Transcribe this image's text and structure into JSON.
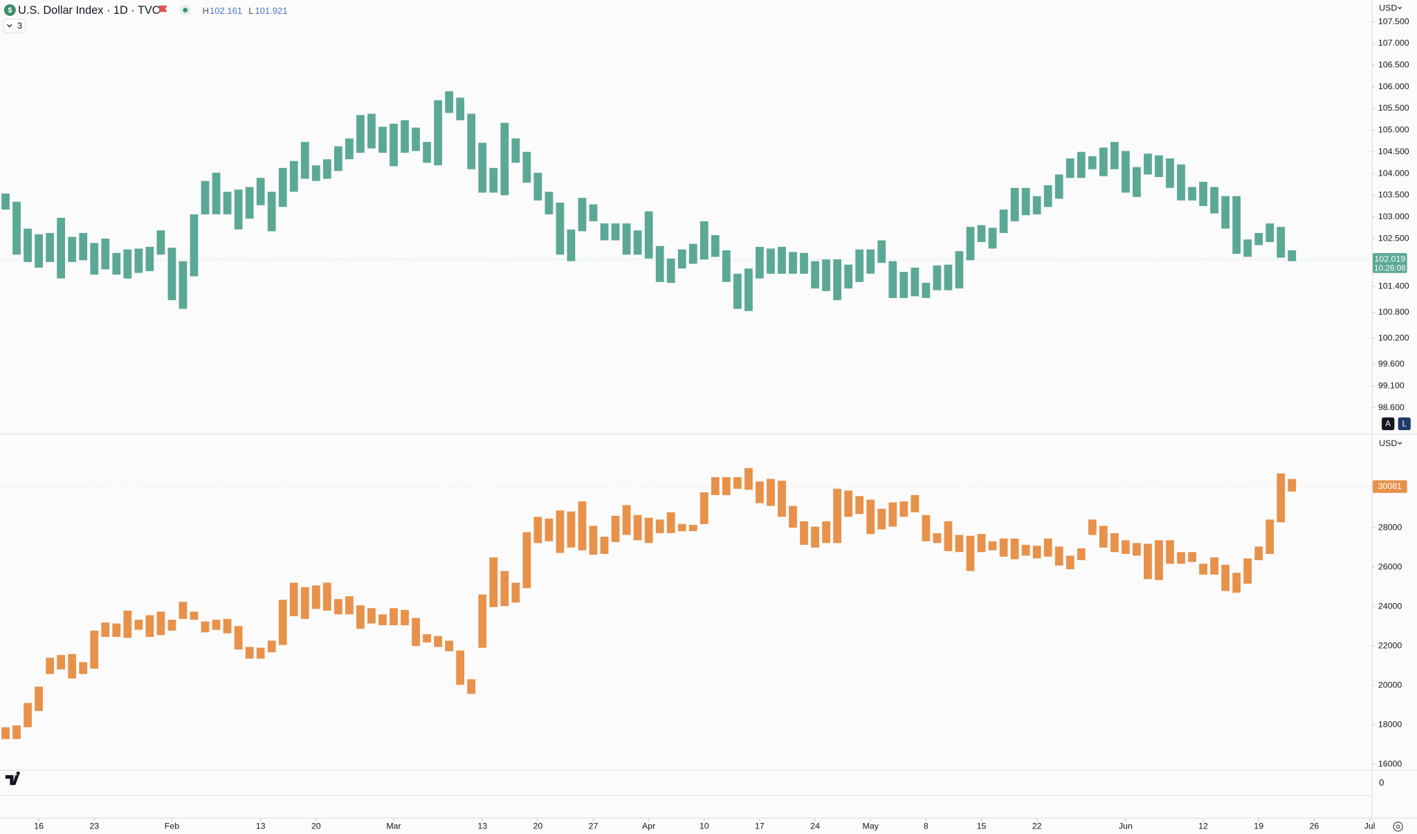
{
  "header": {
    "symbol": "U.S. Dollar Index · 1D · TVC",
    "high_label": "H",
    "high": 102.161,
    "low_label": "L",
    "low": 101.921,
    "indicators": 3
  },
  "chart_data": [
    {
      "type": "range-bar",
      "currency": "USD",
      "color": "#5ba896",
      "low": [
        103.17,
        102.13,
        101.96,
        101.83,
        101.96,
        101.58,
        101.96,
        102.0,
        101.67,
        101.79,
        101.67,
        101.58,
        101.71,
        101.75,
        102.13,
        101.08,
        100.88,
        101.63,
        103.06,
        103.06,
        103.06,
        102.71,
        102.96,
        103.27,
        102.67,
        103.23,
        103.58,
        103.88,
        103.83,
        103.88,
        104.06,
        104.33,
        104.48,
        104.58,
        104.48,
        104.17,
        104.48,
        104.52,
        104.25,
        104.19,
        105.4,
        105.23,
        104.1,
        103.56,
        103.56,
        103.5,
        104.25,
        103.79,
        103.38,
        103.06,
        102.13,
        101.98,
        102.67,
        102.9,
        102.46,
        102.46,
        102.13,
        102.13,
        102.04,
        101.5,
        101.48,
        101.81,
        101.92,
        102.02,
        102.08,
        101.5,
        100.88,
        100.83,
        101.58,
        101.69,
        101.69,
        101.69,
        101.69,
        101.35,
        101.29,
        101.08,
        101.35,
        101.5,
        101.69,
        101.94,
        101.13,
        101.13,
        101.17,
        101.13,
        101.31,
        101.31,
        101.35,
        102.0,
        102.42,
        102.27,
        102.63,
        102.9,
        103.04,
        103.06,
        103.23,
        103.42,
        103.9,
        103.9,
        104.1,
        103.94,
        104.1,
        103.56,
        103.46,
        103.98,
        103.92,
        103.67,
        103.38,
        103.38,
        103.25,
        103.08,
        102.73,
        102.15,
        102.08,
        102.35,
        102.42,
        102.06,
        101.98
      ],
      "high": [
        103.54,
        103.35,
        102.73,
        102.6,
        102.63,
        102.98,
        102.54,
        102.63,
        102.4,
        102.5,
        102.17,
        102.25,
        102.27,
        102.31,
        102.69,
        102.29,
        101.98,
        103.06,
        103.83,
        104.02,
        103.58,
        103.63,
        103.69,
        103.9,
        103.58,
        104.13,
        104.29,
        104.73,
        104.19,
        104.33,
        104.63,
        104.81,
        105.35,
        105.38,
        105.08,
        105.15,
        105.23,
        105.06,
        104.73,
        105.69,
        105.9,
        105.75,
        105.38,
        104.71,
        104.13,
        105.17,
        104.81,
        104.5,
        104.02,
        103.58,
        103.33,
        102.71,
        103.44,
        103.29,
        102.85,
        102.85,
        102.85,
        102.69,
        103.13,
        102.33,
        102.04,
        102.25,
        102.38,
        102.9,
        102.58,
        102.23,
        101.69,
        101.81,
        102.31,
        102.27,
        102.31,
        102.19,
        102.17,
        101.98,
        102.02,
        102.02,
        101.9,
        102.25,
        102.25,
        102.46,
        101.98,
        101.73,
        101.83,
        101.48,
        101.88,
        101.9,
        102.21,
        102.77,
        102.81,
        102.75,
        103.17,
        103.67,
        103.67,
        103.48,
        103.73,
        103.98,
        104.35,
        104.5,
        104.4,
        104.6,
        104.73,
        104.52,
        104.15,
        104.46,
        104.42,
        104.35,
        104.21,
        103.69,
        103.81,
        103.69,
        103.48,
        103.48,
        102.48,
        102.63,
        102.85,
        102.77,
        102.23
      ],
      "xlim": [
        -0.5,
        123.2
      ],
      "ylim": [
        98,
        108
      ],
      "yticks": [
        {
          "value": 107.5,
          "label": "107.500"
        },
        {
          "value": 107,
          "label": "107.000"
        },
        {
          "value": 106.5,
          "label": "106.500"
        },
        {
          "value": 106,
          "label": "106.000"
        },
        {
          "value": 105.5,
          "label": "105.500"
        },
        {
          "value": 105,
          "label": "105.000"
        },
        {
          "value": 104.5,
          "label": "104.500"
        },
        {
          "value": 104,
          "label": "104.000"
        },
        {
          "value": 103.5,
          "label": "103.500"
        },
        {
          "value": 103,
          "label": "103.000"
        },
        {
          "value": 102.5,
          "label": "102.500"
        },
        {
          "value": 101.4,
          "label": "101.400"
        },
        {
          "value": 100.8,
          "label": "100.800"
        },
        {
          "value": 100.2,
          "label": "100.200"
        },
        {
          "value": 99.6,
          "label": "99.600"
        },
        {
          "value": 99.1,
          "label": "99.100"
        },
        {
          "value": 98.6,
          "label": "98.600"
        }
      ],
      "last_value": 102.019,
      "countdown": "10:26:08",
      "scale_buttons": [
        "A",
        "L"
      ]
    },
    {
      "type": "range-bar",
      "currency": "USD",
      "color": "#e8914a",
      "low": [
        17280,
        17280,
        17880,
        18700,
        20580,
        20810,
        20350,
        20580,
        20850,
        22460,
        22460,
        22410,
        22820,
        22460,
        22550,
        22780,
        23370,
        23330,
        22690,
        22820,
        22640,
        21820,
        21360,
        21360,
        21680,
        22050,
        23510,
        23370,
        23880,
        23790,
        23600,
        23600,
        22870,
        23140,
        23050,
        23050,
        23050,
        22000,
        22180,
        21950,
        21730,
        20030,
        19570,
        21910,
        23970,
        24020,
        24200,
        24930,
        27220,
        27310,
        26720,
        26990,
        26850,
        26630,
        26670,
        27270,
        27630,
        27360,
        27220,
        27720,
        27720,
        27820,
        27820,
        28180,
        29650,
        29650,
        29970,
        29920,
        29240,
        29100,
        28550,
        28000,
        27130,
        26990,
        27220,
        27220,
        28550,
        28690,
        27680,
        27910,
        28050,
        28550,
        28780,
        27310,
        27220,
        26810,
        26760,
        25800,
        26760,
        26850,
        26530,
        26400,
        26580,
        26440,
        26530,
        26080,
        25890,
        26350,
        27630,
        26990,
        26760,
        26670,
        26580,
        25390,
        25340,
        26170,
        26170,
        26260,
        25620,
        25620,
        24790,
        24700,
        25160,
        26350,
        26670,
        28270,
        29830
      ],
      "high": [
        17880,
        17970,
        19110,
        19940,
        21400,
        21540,
        21590,
        21180,
        22780,
        23190,
        23140,
        23790,
        23330,
        23560,
        23740,
        23330,
        24240,
        23740,
        23240,
        23330,
        23370,
        23010,
        21950,
        21910,
        22270,
        24340,
        25210,
        24980,
        25070,
        25210,
        24380,
        24520,
        24060,
        23920,
        23600,
        23920,
        23830,
        23420,
        22600,
        22500,
        22270,
        21770,
        20310,
        24610,
        26490,
        25800,
        25210,
        27770,
        28550,
        28460,
        28870,
        28820,
        29330,
        28090,
        27540,
        28600,
        29140,
        28640,
        28500,
        28410,
        28780,
        28180,
        28140,
        29790,
        30560,
        30560,
        30560,
        31020,
        30340,
        30470,
        30380,
        29100,
        28320,
        28050,
        28320,
        29970,
        29880,
        29600,
        29420,
        28960,
        29280,
        29330,
        29650,
        28640,
        27720,
        28320,
        27630,
        27590,
        27680,
        27310,
        27450,
        27450,
        27130,
        27080,
        27450,
        27040,
        26580,
        26950,
        28410,
        28090,
        27720,
        27360,
        27220,
        27180,
        27360,
        27360,
        26760,
        26760,
        26170,
        26490,
        26120,
        25710,
        26440,
        27040,
        28410,
        30750,
        30470
      ],
      "xlim": [
        -0.5,
        123.2
      ],
      "ylim": [
        15725,
        32717
      ],
      "yticks": [
        28000,
        26000,
        24000,
        22000,
        20000,
        18000,
        16000
      ],
      "xticks": [
        {
          "value": 3,
          "label": "16"
        },
        {
          "value": 8,
          "label": "23"
        },
        {
          "value": 15,
          "label": "Feb"
        },
        {
          "value": 23,
          "label": "13"
        },
        {
          "value": 28,
          "label": "20"
        },
        {
          "value": 35,
          "label": "Mar"
        },
        {
          "value": 43,
          "label": "13"
        },
        {
          "value": 48,
          "label": "20"
        },
        {
          "value": 53,
          "label": "27"
        },
        {
          "value": 58,
          "label": "Apr"
        },
        {
          "value": 63,
          "label": "10"
        },
        {
          "value": 68,
          "label": "17"
        },
        {
          "value": 73,
          "label": "24"
        },
        {
          "value": 78,
          "label": "May"
        },
        {
          "value": 83,
          "label": "8"
        },
        {
          "value": 88,
          "label": "15"
        },
        {
          "value": 93,
          "label": "22"
        },
        {
          "value": 101,
          "label": "Jun"
        },
        {
          "value": 108,
          "label": "12"
        },
        {
          "value": 113,
          "label": "19"
        },
        {
          "value": 118,
          "label": "26"
        },
        {
          "value": 123,
          "label": "Jul"
        }
      ],
      "last_value": 30081
    }
  ],
  "volume_pane": {
    "yticks": [
      0
    ]
  }
}
